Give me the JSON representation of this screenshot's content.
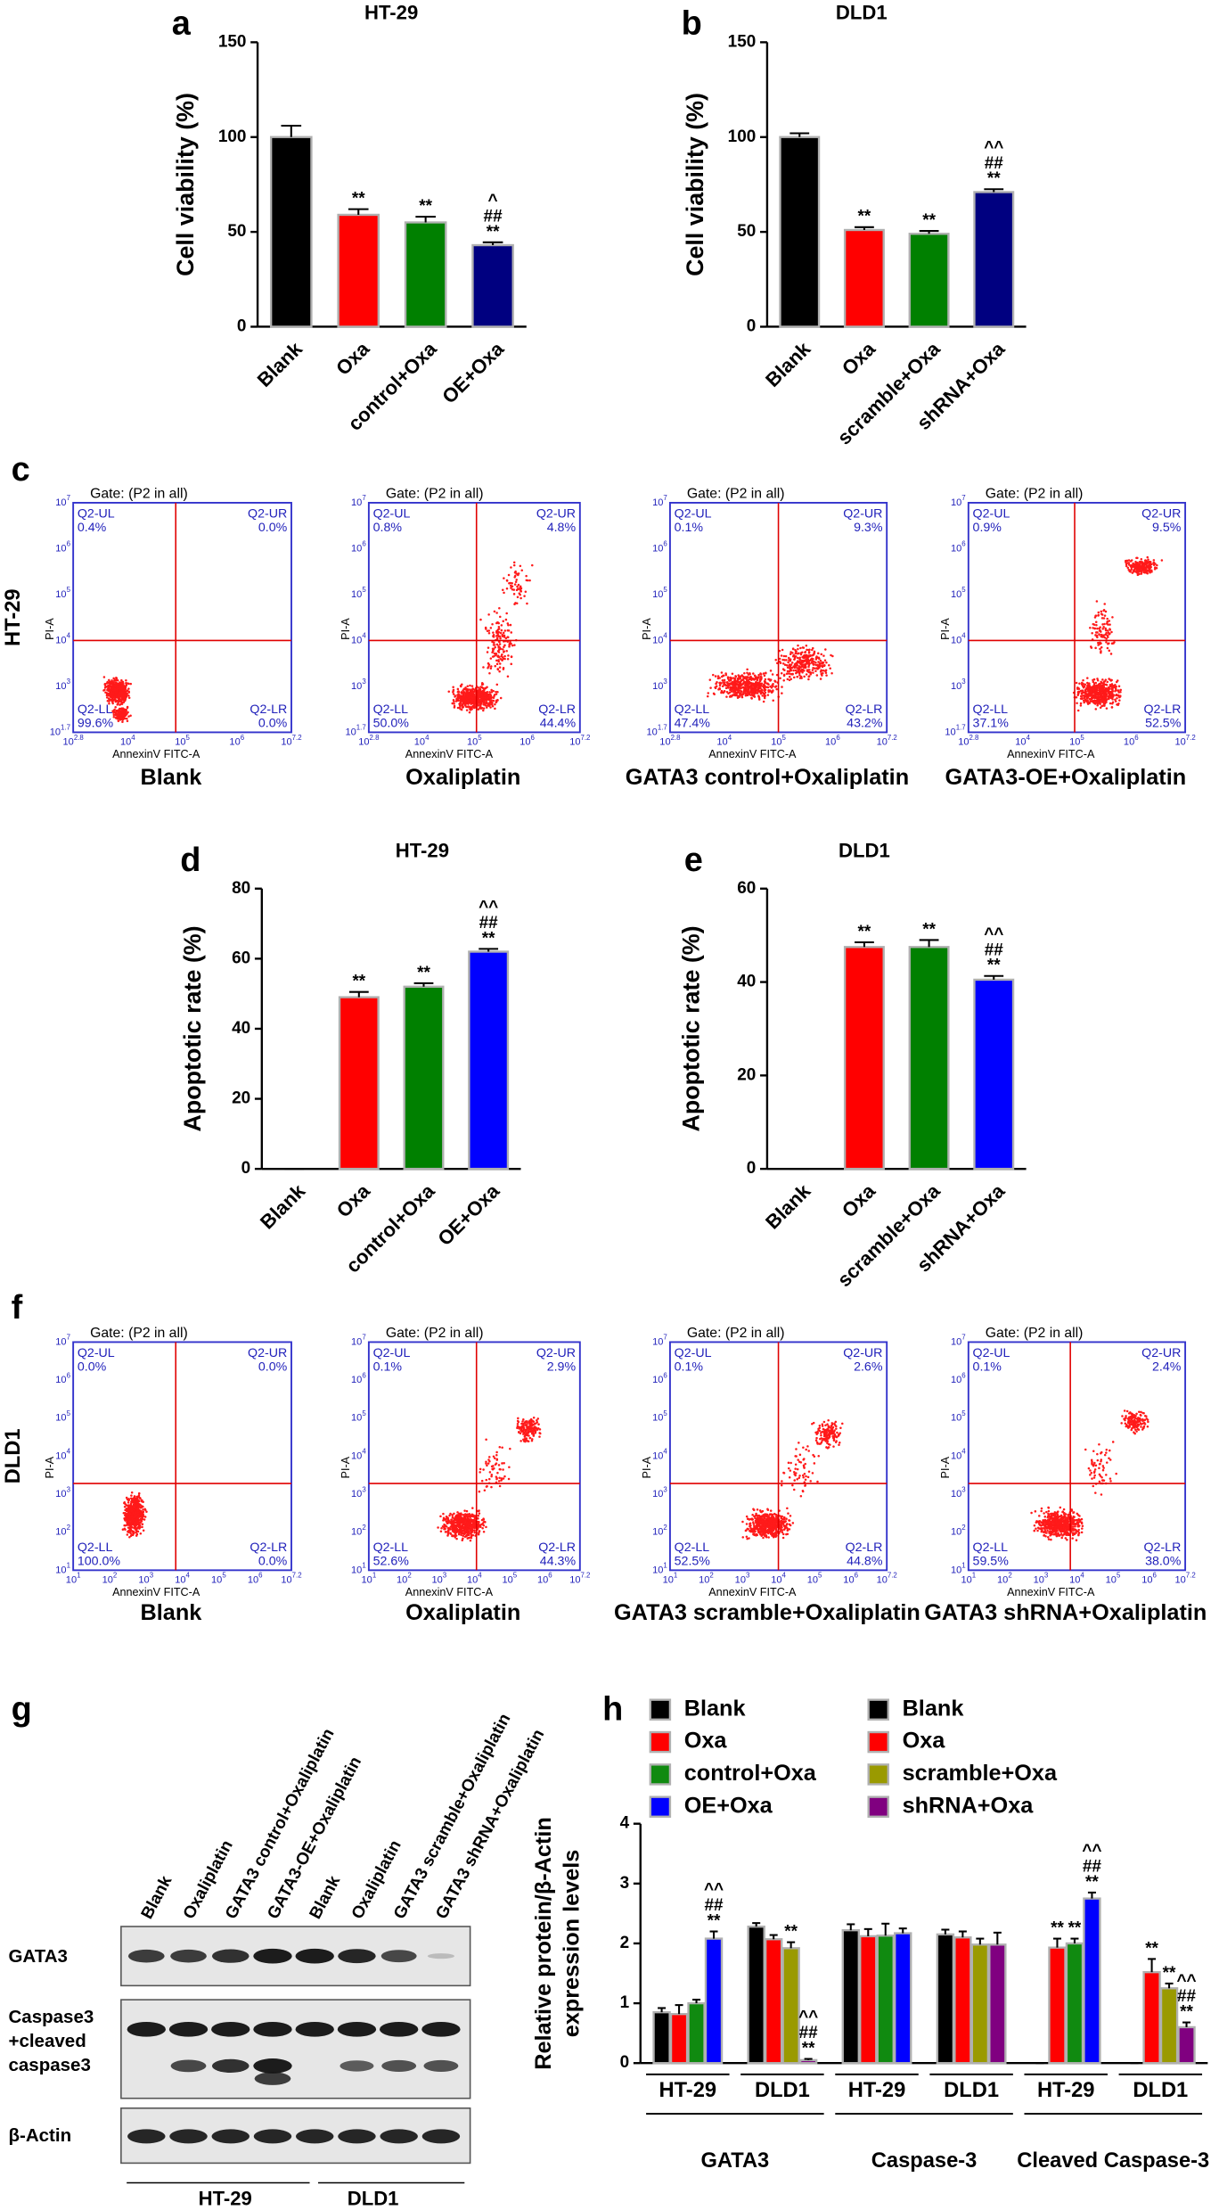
{
  "chart_data": [
    {
      "type": "bar",
      "panel": "a",
      "title": "HT-29",
      "ylabel": "Cell viability (%)",
      "categories": [
        "Blank",
        "Oxa",
        "control+Oxa",
        "OE+Oxa"
      ],
      "values": [
        100,
        59,
        55,
        43
      ],
      "errors": [
        6,
        3,
        3,
        1.5
      ],
      "colors": [
        "#000000",
        "#ff0000",
        "#008000",
        "#000080"
      ],
      "annotations": [
        [],
        [
          "**"
        ],
        [
          "**"
        ],
        [
          "^",
          "##",
          "**"
        ]
      ],
      "ylim": [
        0,
        150
      ],
      "yticks": [
        0,
        50,
        100,
        150
      ]
    },
    {
      "type": "bar",
      "panel": "b",
      "title": "DLD1",
      "ylabel": "Cell viability (%)",
      "categories": [
        "Blank",
        "Oxa",
        "scramble+Oxa",
        "shRNA+Oxa"
      ],
      "values": [
        100,
        51,
        49,
        71
      ],
      "errors": [
        2,
        1.5,
        1.5,
        1.5
      ],
      "colors": [
        "#000000",
        "#ff0000",
        "#008000",
        "#000080"
      ],
      "annotations": [
        [],
        [
          "**"
        ],
        [
          "**"
        ],
        [
          "^^",
          "##",
          "**"
        ]
      ],
      "ylim": [
        0,
        150
      ],
      "yticks": [
        0,
        50,
        100,
        150
      ]
    },
    {
      "type": "bar",
      "panel": "d",
      "title": "HT-29",
      "ylabel": "Apoptotic rate (%)",
      "categories": [
        "Blank",
        "Oxa",
        "control+Oxa",
        "OE+Oxa"
      ],
      "values": [
        0,
        49,
        52,
        62
      ],
      "errors": [
        0,
        1.5,
        1,
        0.8
      ],
      "colors": [
        "#000000",
        "#ff0000",
        "#008000",
        "#0000ff"
      ],
      "annotations": [
        [],
        [
          "**"
        ],
        [
          "**"
        ],
        [
          "^^",
          "##",
          "**"
        ]
      ],
      "ylim": [
        0,
        80
      ],
      "yticks": [
        0,
        20,
        40,
        60,
        80
      ]
    },
    {
      "type": "bar",
      "panel": "e",
      "title": "DLD1",
      "ylabel": "Apoptotic rate (%)",
      "categories": [
        "Blank",
        "Oxa",
        "scramble+Oxa",
        "shRNA+Oxa"
      ],
      "values": [
        0,
        47.5,
        47.5,
        40.5
      ],
      "errors": [
        0,
        1,
        1.5,
        0.8
      ],
      "colors": [
        "#000000",
        "#ff0000",
        "#008000",
        "#0000ff"
      ],
      "annotations": [
        [],
        [
          "**"
        ],
        [
          "**"
        ],
        [
          "^^",
          "##",
          "**"
        ]
      ],
      "ylim": [
        0,
        60
      ],
      "yticks": [
        0,
        20,
        40,
        60
      ]
    },
    {
      "type": "bar",
      "panel": "h",
      "ylabel": [
        "Relative protein/β-Actin",
        "expression levels"
      ],
      "categories": [
        "HT-29",
        "DLD1",
        "HT-29",
        "DLD1",
        "HT-29",
        "DLD1"
      ],
      "category_groups": [
        "GATA3",
        "Caspase-3",
        "Cleaved Caspase-3"
      ],
      "ylim": [
        0,
        4
      ],
      "yticks": [
        0,
        1,
        2,
        3,
        4
      ],
      "series": [
        {
          "name": "Blank",
          "color": "#000000",
          "values": [
            0.85,
            null,
            2.22,
            null,
            0,
            null
          ],
          "errors": [
            0.07,
            null,
            0.1,
            null,
            0,
            null
          ],
          "annotations": [
            [],
            null,
            [],
            null,
            [],
            null
          ]
        },
        {
          "name": "Oxa",
          "color": "#ff0000",
          "values": [
            0.82,
            null,
            2.12,
            null,
            1.93,
            null
          ],
          "errors": [
            0.15,
            null,
            0.12,
            null,
            0.15,
            null
          ],
          "annotations": [
            [],
            null,
            [],
            null,
            [
              "**"
            ],
            null
          ]
        },
        {
          "name": "control+Oxa",
          "color": "#108a10",
          "values": [
            1.0,
            null,
            2.13,
            null,
            2.0,
            null
          ],
          "errors": [
            0.06,
            null,
            0.2,
            null,
            0.08,
            null
          ],
          "annotations": [
            [],
            null,
            [],
            null,
            [
              "**"
            ],
            null
          ]
        },
        {
          "name": "OE+Oxa",
          "color": "#0000ff",
          "values": [
            2.08,
            null,
            2.17,
            null,
            2.75,
            null
          ],
          "errors": [
            0.12,
            null,
            0.08,
            null,
            0.1,
            null
          ],
          "annotations": [
            [
              "^^",
              "##",
              "**"
            ],
            null,
            [],
            null,
            [
              "^^",
              "##",
              "**"
            ],
            null
          ]
        },
        {
          "name": "Blank",
          "color": "#000000",
          "values": [
            null,
            2.28,
            null,
            2.15,
            null,
            0
          ],
          "errors": [
            null,
            0.06,
            null,
            0.08,
            null,
            0
          ],
          "annotations": [
            null,
            [],
            null,
            [],
            null,
            []
          ]
        },
        {
          "name": "Oxa",
          "color": "#ff0000",
          "values": [
            null,
            2.07,
            null,
            2.1,
            null,
            1.52
          ],
          "errors": [
            null,
            0.07,
            null,
            0.1,
            null,
            0.22
          ],
          "annotations": [
            null,
            [],
            null,
            [],
            null,
            [
              "**"
            ]
          ]
        },
        {
          "name": "scramble+Oxa",
          "color": "#9a9a00",
          "values": [
            null,
            1.92,
            null,
            1.98,
            null,
            1.25
          ],
          "errors": [
            null,
            0.1,
            null,
            0.1,
            null,
            0.08
          ],
          "annotations": [
            null,
            [
              "**"
            ],
            null,
            [],
            null,
            [
              "**"
            ]
          ]
        },
        {
          "name": "shRNA+Oxa",
          "color": "#800080",
          "values": [
            null,
            0.05,
            null,
            1.98,
            null,
            0.6
          ],
          "errors": [
            null,
            0.02,
            null,
            0.2,
            null,
            0.08
          ],
          "annotations": [
            null,
            [
              "^^",
              "##",
              "**"
            ],
            null,
            [],
            null,
            [
              "^^",
              "##",
              "**"
            ]
          ]
        }
      ]
    }
  ],
  "flow_c": {
    "panel": "c",
    "row_label": "HT-29",
    "gate": "Gate: (P2 in all)",
    "xlabel": "AnnexinV FITC-A",
    "ylabel": "PI-A",
    "tick_base": "10",
    "xticks": [
      "2.8",
      "4",
      "5",
      "6",
      "7.2"
    ],
    "yticks": [
      "1.7",
      "3",
      "4",
      "5",
      "6",
      "7"
    ],
    "quadrant_names": [
      "Q2-UL",
      "Q2-UR",
      "Q2-LL",
      "Q2-LR"
    ],
    "plots": [
      {
        "caption": "Blank",
        "quadrants": [
          "0.4%",
          "0.0%",
          "99.6%",
          "0.0%"
        ]
      },
      {
        "caption": "Oxaliplatin",
        "quadrants": [
          "0.8%",
          "4.8%",
          "50.0%",
          "44.4%"
        ]
      },
      {
        "caption": "GATA3 control+Oxaliplatin",
        "quadrants": [
          "0.1%",
          "9.3%",
          "47.4%",
          "43.2%"
        ]
      },
      {
        "caption": "GATA3-OE+Oxaliplatin",
        "quadrants": [
          "0.9%",
          "9.5%",
          "37.1%",
          "52.5%"
        ]
      }
    ]
  },
  "flow_f": {
    "panel": "f",
    "row_label": "DLD1",
    "gate": "Gate: (P2 in all)",
    "xlabel": "AnnexinV FITC-A",
    "ylabel": "PI-A",
    "tick_base": "10",
    "xticks": [
      "1",
      "2",
      "3",
      "4",
      "5",
      "6",
      "7.2"
    ],
    "yticks": [
      "1",
      "2",
      "3",
      "4",
      "5",
      "6",
      "7"
    ],
    "quadrant_names": [
      "Q2-UL",
      "Q2-UR",
      "Q2-LL",
      "Q2-LR"
    ],
    "plots": [
      {
        "caption": "Blank",
        "quadrants": [
          "0.0%",
          "0.0%",
          "100.0%",
          "0.0%"
        ]
      },
      {
        "caption": "Oxaliplatin",
        "quadrants": [
          "0.1%",
          "2.9%",
          "52.6%",
          "44.3%"
        ]
      },
      {
        "caption": "GATA3 scramble+Oxaliplatin",
        "quadrants": [
          "0.1%",
          "2.6%",
          "52.5%",
          "44.8%"
        ]
      },
      {
        "caption": "GATA3 shRNA+Oxaliplatin",
        "quadrants": [
          "0.1%",
          "2.4%",
          "59.5%",
          "38.0%"
        ]
      }
    ]
  },
  "blot_g": {
    "panel": "g",
    "lanes": [
      "Blank",
      "Oxaliplatin",
      "GATA3 control+Oxaliplatin",
      "GATA3-OE+Oxaliplatin",
      "Blank",
      "Oxaliplatin",
      "GATA3 scramble+Oxaliplatin",
      "GATA3 shRNA+Oxaliplatin"
    ],
    "rows": [
      [
        "GATA3"
      ],
      [
        "Caspase3",
        "+cleaved",
        "caspase3"
      ],
      [
        "β-Actin"
      ]
    ],
    "groups": [
      "HT-29",
      "DLD1"
    ]
  }
}
